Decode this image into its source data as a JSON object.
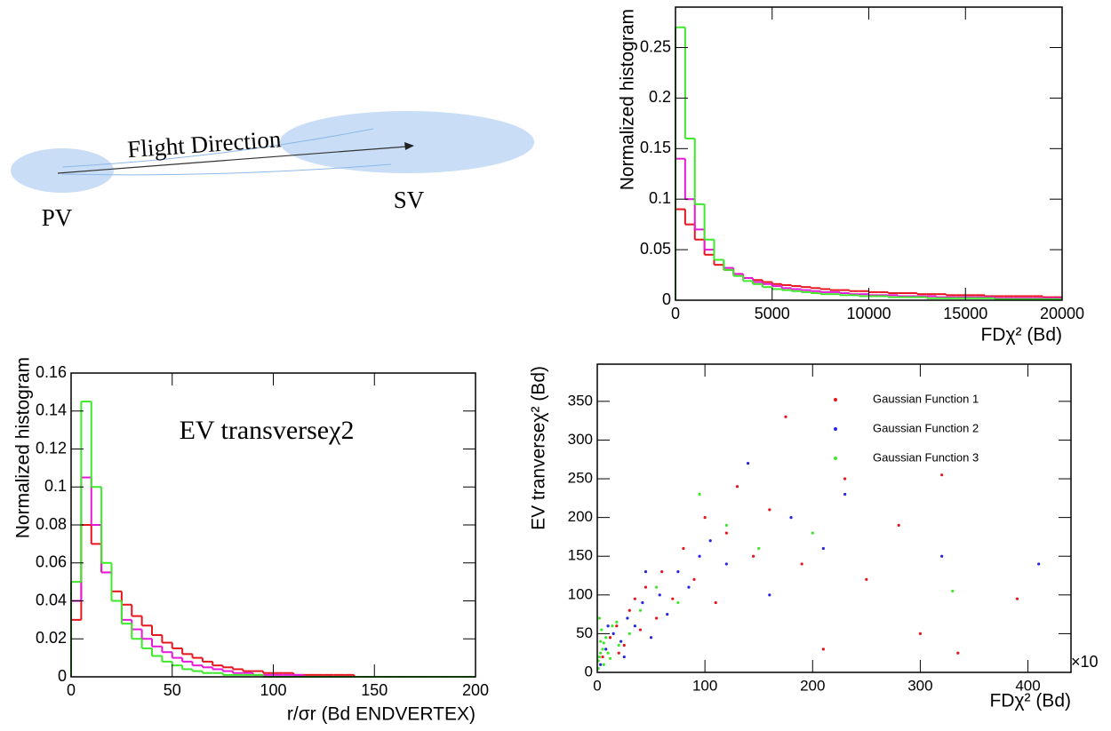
{
  "diagram": {
    "direction_label": "Flight Direction",
    "pv_label": "PV",
    "sv_label": "SV"
  },
  "chart_data": [
    {
      "type": "histogram",
      "ylabel": "Normalized histogram",
      "xlabel": "FDχ² (Bd)",
      "xlim": [
        0,
        20000
      ],
      "xticks": [
        0,
        5000,
        10000,
        15000,
        20000
      ],
      "ylim": [
        0,
        0.29
      ],
      "yticks": [
        0,
        0.05,
        0.1,
        0.15,
        0.2,
        0.25
      ],
      "bins": [
        0,
        500,
        1000,
        1500,
        2000,
        2500,
        3000,
        3500,
        4000,
        4500,
        5000,
        5500,
        6000,
        6500,
        7000,
        7500,
        8000,
        8500,
        9000,
        9500,
        10000,
        10500,
        11000,
        11500,
        12000,
        12500,
        13000,
        13500,
        14000,
        14500,
        15000,
        15500,
        16000,
        16500,
        17000,
        17500,
        18000,
        18500,
        19000,
        19500,
        20000
      ],
      "series": [
        {
          "color": "#e8141e",
          "values": [
            0.09,
            0.075,
            0.06,
            0.045,
            0.035,
            0.03,
            0.026,
            0.022,
            0.02,
            0.018,
            0.016,
            0.015,
            0.014,
            0.013,
            0.012,
            0.011,
            0.01,
            0.01,
            0.009,
            0.009,
            0.008,
            0.008,
            0.007,
            0.007,
            0.007,
            0.006,
            0.006,
            0.006,
            0.005,
            0.005,
            0.005,
            0.005,
            0.004,
            0.004,
            0.004,
            0.004,
            0.004,
            0.004,
            0.003,
            0.003
          ]
        },
        {
          "color": "#e619d8",
          "values": [
            0.14,
            0.1,
            0.07,
            0.05,
            0.04,
            0.032,
            0.026,
            0.022,
            0.018,
            0.016,
            0.014,
            0.012,
            0.011,
            0.01,
            0.009,
            0.008,
            0.008,
            0.007,
            0.006,
            0.006,
            0.005,
            0.005,
            0.005,
            0.004,
            0.004,
            0.004,
            0.004,
            0.003,
            0.003,
            0.003,
            0.003,
            0.003,
            0.003,
            0.002,
            0.002,
            0.002,
            0.002,
            0.002,
            0.002,
            0.002
          ]
        },
        {
          "color": "#3ee82a",
          "values": [
            0.27,
            0.16,
            0.095,
            0.06,
            0.04,
            0.03,
            0.024,
            0.019,
            0.016,
            0.013,
            0.011,
            0.01,
            0.009,
            0.008,
            0.007,
            0.006,
            0.006,
            0.005,
            0.005,
            0.004,
            0.004,
            0.004,
            0.003,
            0.003,
            0.003,
            0.003,
            0.002,
            0.002,
            0.002,
            0.002,
            0.002,
            0.002,
            0.002,
            0.001,
            0.001,
            0.001,
            0.001,
            0.001,
            0.001,
            0.001
          ]
        }
      ]
    },
    {
      "type": "histogram",
      "ylabel": "Normalized histogram",
      "xlabel": "r/σr (Bd ENDVERTEX)",
      "annotation": "EV transverseχ2",
      "xlim": [
        0,
        200
      ],
      "xticks": [
        0,
        50,
        100,
        150,
        200
      ],
      "ylim": [
        0,
        0.16
      ],
      "yticks": [
        0,
        0.02,
        0.04,
        0.06,
        0.08,
        0.1,
        0.12,
        0.14,
        0.16
      ],
      "bins": [
        0,
        5,
        10,
        15,
        20,
        25,
        30,
        35,
        40,
        45,
        50,
        55,
        60,
        65,
        70,
        75,
        80,
        85,
        90,
        95,
        100,
        105,
        110,
        115,
        120,
        125,
        130,
        135,
        140,
        145,
        150,
        155,
        160,
        165,
        170,
        175,
        180,
        185,
        190,
        195,
        200
      ],
      "series": [
        {
          "color": "#e8141e",
          "values": [
            0.03,
            0.08,
            0.07,
            0.055,
            0.045,
            0.038,
            0.032,
            0.027,
            0.022,
            0.018,
            0.015,
            0.012,
            0.01,
            0.008,
            0.006,
            0.005,
            0.004,
            0.003,
            0.003,
            0.002,
            0.002,
            0.002,
            0.001,
            0.001,
            0.001,
            0.001,
            0.001,
            0.001,
            0,
            0,
            0,
            0,
            0,
            0,
            0,
            0,
            0,
            0,
            0,
            0
          ]
        },
        {
          "color": "#e619d8",
          "values": [
            0.04,
            0.105,
            0.08,
            0.055,
            0.04,
            0.03,
            0.025,
            0.02,
            0.016,
            0.013,
            0.01,
            0.008,
            0.006,
            0.005,
            0.004,
            0.003,
            0.002,
            0.002,
            0.001,
            0.001,
            0.001,
            0.001,
            0.001,
            0,
            0,
            0,
            0,
            0,
            0,
            0,
            0,
            0,
            0,
            0,
            0,
            0,
            0,
            0,
            0,
            0
          ]
        },
        {
          "color": "#3ee82a",
          "values": [
            0.05,
            0.145,
            0.1,
            0.06,
            0.04,
            0.028,
            0.02,
            0.015,
            0.011,
            0.008,
            0.006,
            0.004,
            0.003,
            0.002,
            0.002,
            0.001,
            0.001,
            0.001,
            0.001,
            0,
            0,
            0,
            0,
            0,
            0,
            0,
            0,
            0,
            0,
            0,
            0,
            0,
            0,
            0,
            0,
            0,
            0,
            0,
            0,
            0
          ]
        }
      ]
    },
    {
      "type": "scatter",
      "ylabel": "EV tranverseχ² (Bd)",
      "xlabel": "FDχ² (Bd)",
      "x_multiplier": "×10",
      "xlim": [
        0,
        440
      ],
      "xticks": [
        0,
        100,
        200,
        300,
        400
      ],
      "ylim": [
        0,
        398
      ],
      "yticks": [
        0,
        50,
        100,
        150,
        200,
        250,
        300,
        350
      ],
      "series": [
        {
          "name": "Gaussian Function 1",
          "color": "#e8141e",
          "x": [
            5,
            12,
            18,
            25,
            30,
            40,
            45,
            55,
            60,
            70,
            80,
            90,
            100,
            110,
            120,
            130,
            145,
            160,
            175,
            190,
            210,
            230,
            250,
            280,
            300,
            320,
            335,
            390,
            20,
            35
          ],
          "y": [
            20,
            45,
            60,
            35,
            80,
            55,
            110,
            70,
            130,
            95,
            160,
            120,
            200,
            90,
            180,
            240,
            150,
            210,
            330,
            140,
            30,
            250,
            120,
            190,
            50,
            255,
            25,
            95,
            25,
            95
          ]
        },
        {
          "name": "Gaussian Function 2",
          "color": "#2626e0",
          "x": [
            3,
            8,
            15,
            22,
            28,
            35,
            42,
            50,
            58,
            65,
            75,
            85,
            95,
            105,
            120,
            140,
            160,
            180,
            210,
            230,
            320,
            410,
            10,
            25,
            45
          ],
          "y": [
            10,
            30,
            50,
            40,
            70,
            60,
            90,
            45,
            100,
            75,
            130,
            110,
            150,
            170,
            140,
            270,
            100,
            200,
            160,
            230,
            150,
            140,
            60,
            20,
            130
          ]
        },
        {
          "name": "Gaussian Function 3",
          "color": "#3ee82a",
          "x": [
            1,
            2,
            3,
            4,
            5,
            6,
            8,
            10,
            14,
            20,
            30,
            40,
            55,
            75,
            95,
            120,
            150,
            200,
            330,
            2,
            1,
            3,
            6,
            12,
            18
          ],
          "y": [
            5,
            20,
            40,
            55,
            30,
            10,
            45,
            25,
            60,
            35,
            50,
            80,
            110,
            90,
            230,
            190,
            160,
            180,
            105,
            70,
            15,
            25,
            38,
            18,
            65
          ]
        }
      ]
    }
  ]
}
